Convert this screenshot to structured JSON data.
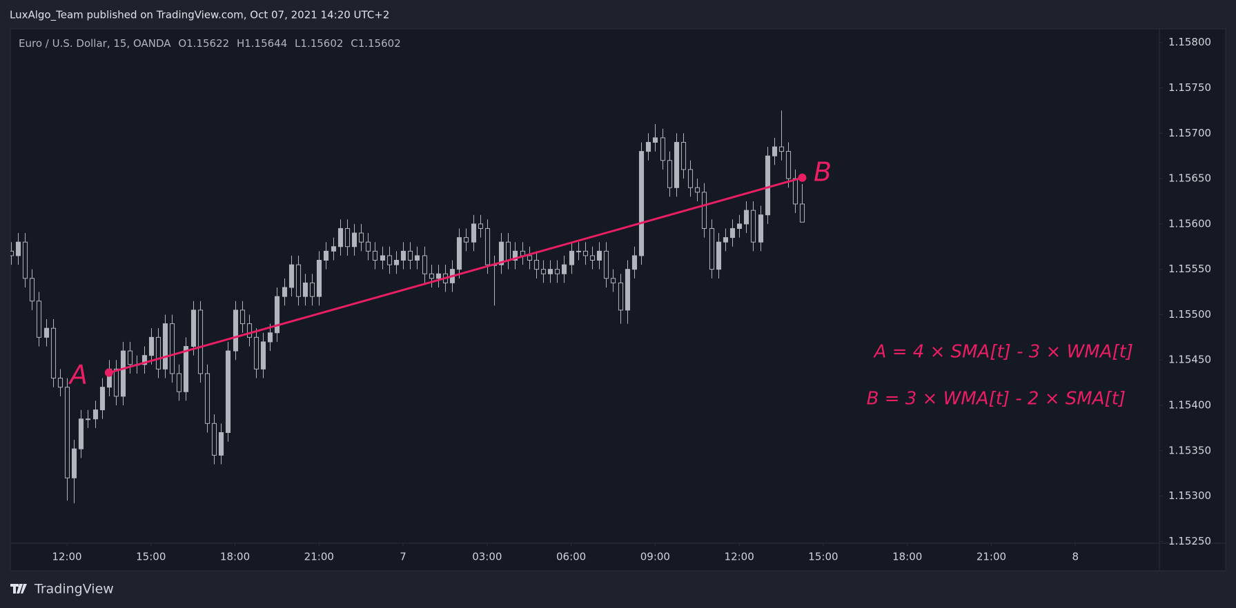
{
  "header": {
    "title": "LuxAlgo_Team published on TradingView.com, Oct 07, 2021 14:20 UTC+2"
  },
  "footer": {
    "brand": "TradingView"
  },
  "chart_data": {
    "type": "candlestick",
    "symbol": "Euro / U.S. Dollar, 15, OANDA",
    "ohlc_prefixes": [
      "O",
      "H",
      "L",
      "C"
    ],
    "color": "#b2b5be",
    "x": [
      10,
      10.25,
      10.5,
      10.75,
      11,
      11.25,
      11.5,
      11.75,
      12,
      12.25,
      12.5,
      12.75,
      13,
      13.25,
      13.5,
      13.75,
      14,
      14.25,
      14.5,
      14.75,
      15,
      15.25,
      15.5,
      15.75,
      16,
      16.25,
      16.5,
      16.75,
      17,
      17.25,
      17.5,
      17.75,
      18,
      18.25,
      18.5,
      18.75,
      19,
      19.25,
      19.5,
      19.75,
      20,
      20.25,
      20.5,
      20.75,
      21,
      21.25,
      21.5,
      21.75,
      22,
      22.25,
      22.5,
      22.75,
      23,
      23.25,
      23.5,
      23.75,
      24,
      24.25,
      24.5,
      24.75,
      25,
      25.25,
      25.5,
      25.75,
      26,
      26.25,
      26.5,
      26.75,
      27,
      27.25,
      27.5,
      27.75,
      28,
      28.25,
      28.5,
      28.75,
      29,
      29.25,
      29.5,
      29.75,
      30,
      30.25,
      30.5,
      30.75,
      31,
      31.25,
      31.5,
      31.75,
      32,
      32.25,
      32.5,
      32.75,
      33,
      33.25,
      33.5,
      33.75,
      34,
      34.25,
      34.5,
      34.75,
      35,
      35.25,
      35.5,
      35.75,
      36,
      36.25,
      36.5,
      36.75,
      37,
      37.25,
      37.5,
      37.75,
      38,
      38.25
    ],
    "open": [
      1.1557,
      1.15565,
      1.1558,
      1.1554,
      1.15515,
      1.15475,
      1.15485,
      1.1543,
      1.1542,
      1.1532,
      1.15352,
      1.15385,
      1.15385,
      1.15395,
      1.1542,
      1.1544,
      1.1541,
      1.1546,
      1.15445,
      1.15445,
      1.15455,
      1.15475,
      1.1544,
      1.1549,
      1.15435,
      1.15415,
      1.15465,
      1.15505,
      1.15435,
      1.1538,
      1.15345,
      1.1537,
      1.1546,
      1.15505,
      1.1549,
      1.15475,
      1.1544,
      1.1547,
      1.1548,
      1.1552,
      1.1553,
      1.15555,
      1.1552,
      1.15535,
      1.1552,
      1.1556,
      1.1557,
      1.15575,
      1.15595,
      1.15575,
      1.1559,
      1.1558,
      1.1557,
      1.1556,
      1.15565,
      1.15555,
      1.1556,
      1.1557,
      1.1556,
      1.15565,
      1.15545,
      1.1554,
      1.15545,
      1.15535,
      1.1555,
      1.15585,
      1.1558,
      1.156,
      1.15595,
      1.15555,
      1.15555,
      1.1558,
      1.1556,
      1.1557,
      1.15565,
      1.1556,
      1.1555,
      1.15545,
      1.1555,
      1.15545,
      1.15555,
      1.1557,
      1.1557,
      1.15565,
      1.1556,
      1.1557,
      1.1554,
      1.15535,
      1.15505,
      1.1555,
      1.15565,
      1.1568,
      1.1569,
      1.15695,
      1.1567,
      1.1564,
      1.1569,
      1.1566,
      1.1564,
      1.15635,
      1.15595,
      1.1555,
      1.1558,
      1.15585,
      1.15595,
      1.156,
      1.15615,
      1.1558,
      1.1561,
      1.15675,
      1.15685,
      1.1568,
      1.1565,
      1.15622
    ],
    "high": [
      1.1558,
      1.1559,
      1.1559,
      1.1555,
      1.15525,
      1.15495,
      1.15495,
      1.1544,
      1.1543,
      1.15362,
      1.15395,
      1.15395,
      1.15405,
      1.1543,
      1.1545,
      1.1545,
      1.1547,
      1.1547,
      1.15455,
      1.15465,
      1.15485,
      1.15485,
      1.155,
      1.155,
      1.15445,
      1.15475,
      1.15515,
      1.15515,
      1.15445,
      1.1539,
      1.1538,
      1.1547,
      1.15515,
      1.15515,
      1.155,
      1.15485,
      1.1548,
      1.1549,
      1.1553,
      1.1554,
      1.15565,
      1.15565,
      1.15545,
      1.15545,
      1.1557,
      1.1558,
      1.15585,
      1.15605,
      1.15605,
      1.156,
      1.156,
      1.1559,
      1.1558,
      1.15575,
      1.15575,
      1.1557,
      1.1558,
      1.1558,
      1.15575,
      1.15575,
      1.15555,
      1.15555,
      1.15555,
      1.1556,
      1.15595,
      1.15595,
      1.1561,
      1.1561,
      1.15605,
      1.15565,
      1.1559,
      1.1559,
      1.1558,
      1.1558,
      1.15575,
      1.1557,
      1.1556,
      1.1556,
      1.1556,
      1.15565,
      1.1558,
      1.1558,
      1.1558,
      1.15575,
      1.1558,
      1.1558,
      1.1555,
      1.15545,
      1.1556,
      1.15575,
      1.1569,
      1.157,
      1.1571,
      1.15705,
      1.1568,
      1.157,
      1.157,
      1.1567,
      1.1565,
      1.15645,
      1.15605,
      1.1559,
      1.15595,
      1.15605,
      1.1561,
      1.15625,
      1.15625,
      1.1562,
      1.15685,
      1.15695,
      1.15725,
      1.1569,
      1.1566,
      1.15644
    ],
    "low": [
      1.15555,
      1.15555,
      1.1553,
      1.15505,
      1.15465,
      1.15465,
      1.1542,
      1.1541,
      1.15295,
      1.15292,
      1.15342,
      1.15375,
      1.15375,
      1.15385,
      1.1541,
      1.154,
      1.154,
      1.15435,
      1.15435,
      1.15435,
      1.15445,
      1.1543,
      1.1543,
      1.15425,
      1.15405,
      1.15405,
      1.15455,
      1.15425,
      1.1537,
      1.15335,
      1.15335,
      1.1536,
      1.1545,
      1.1548,
      1.15465,
      1.1543,
      1.1543,
      1.1546,
      1.1547,
      1.1551,
      1.1552,
      1.1551,
      1.1551,
      1.1551,
      1.1551,
      1.1555,
      1.1556,
      1.15565,
      1.15565,
      1.15565,
      1.1557,
      1.1556,
      1.1555,
      1.1555,
      1.15545,
      1.15545,
      1.1555,
      1.1555,
      1.1555,
      1.15535,
      1.1553,
      1.1553,
      1.15525,
      1.15525,
      1.1554,
      1.1557,
      1.1557,
      1.15585,
      1.15545,
      1.1551,
      1.15545,
      1.1555,
      1.1555,
      1.15555,
      1.1555,
      1.1554,
      1.15535,
      1.15535,
      1.15535,
      1.15535,
      1.15545,
      1.1556,
      1.15555,
      1.1555,
      1.1555,
      1.1553,
      1.15525,
      1.1549,
      1.1549,
      1.1554,
      1.15555,
      1.1567,
      1.1568,
      1.1566,
      1.1563,
      1.1563,
      1.1565,
      1.1563,
      1.15625,
      1.15585,
      1.1554,
      1.1554,
      1.1557,
      1.15575,
      1.15585,
      1.1559,
      1.1557,
      1.1557,
      1.156,
      1.15665,
      1.1567,
      1.1564,
      1.15612,
      1.15602
    ],
    "close": [
      1.15565,
      1.1558,
      1.1554,
      1.15515,
      1.15475,
      1.15485,
      1.1543,
      1.1542,
      1.1532,
      1.15352,
      1.15385,
      1.15385,
      1.15395,
      1.1542,
      1.1544,
      1.1541,
      1.1546,
      1.15445,
      1.15445,
      1.15455,
      1.15475,
      1.1544,
      1.1549,
      1.15435,
      1.15415,
      1.15465,
      1.15505,
      1.15435,
      1.1538,
      1.15345,
      1.1537,
      1.1546,
      1.15505,
      1.1549,
      1.15475,
      1.1544,
      1.1547,
      1.1548,
      1.1552,
      1.1553,
      1.15555,
      1.1552,
      1.15535,
      1.1552,
      1.1556,
      1.1557,
      1.15575,
      1.15595,
      1.15575,
      1.1559,
      1.1558,
      1.1557,
      1.1556,
      1.15565,
      1.15555,
      1.1556,
      1.1557,
      1.1556,
      1.15565,
      1.15545,
      1.1554,
      1.15545,
      1.15535,
      1.1555,
      1.15585,
      1.1558,
      1.156,
      1.15595,
      1.15555,
      1.15555,
      1.1558,
      1.1556,
      1.1557,
      1.15565,
      1.1556,
      1.1555,
      1.15545,
      1.1555,
      1.15545,
      1.15555,
      1.1557,
      1.1557,
      1.15565,
      1.1556,
      1.1557,
      1.1554,
      1.15535,
      1.15505,
      1.1555,
      1.15565,
      1.1568,
      1.1569,
      1.15695,
      1.1567,
      1.1564,
      1.1569,
      1.1566,
      1.1564,
      1.15635,
      1.15595,
      1.1555,
      1.1558,
      1.15585,
      1.15595,
      1.156,
      1.15615,
      1.1558,
      1.1561,
      1.15675,
      1.15685,
      1.1568,
      1.1565,
      1.15622,
      1.15602
    ],
    "xlim": [
      9.98,
      51
    ],
    "xticks": [
      {
        "value": 12,
        "label": "12:00"
      },
      {
        "value": 15,
        "label": "15:00"
      },
      {
        "value": 18,
        "label": "18:00"
      },
      {
        "value": 21,
        "label": "21:00"
      },
      {
        "value": 24,
        "label": "7"
      },
      {
        "value": 27,
        "label": "03:00"
      },
      {
        "value": 30,
        "label": "06:00"
      },
      {
        "value": 33,
        "label": "09:00"
      },
      {
        "value": 36,
        "label": "12:00"
      },
      {
        "value": 39,
        "label": "15:00"
      },
      {
        "value": 42,
        "label": "18:00"
      },
      {
        "value": 45,
        "label": "21:00"
      },
      {
        "value": 48,
        "label": "8"
      }
    ],
    "ylim": [
      1.15248,
      1.15815
    ],
    "yticks": [
      {
        "value": 1.1525,
        "label": "1.15250"
      },
      {
        "value": 1.153,
        "label": "1.15300"
      },
      {
        "value": 1.1535,
        "label": "1.15350"
      },
      {
        "value": 1.154,
        "label": "1.15400"
      },
      {
        "value": 1.1545,
        "label": "1.15450"
      },
      {
        "value": 1.155,
        "label": "1.15500"
      },
      {
        "value": 1.1555,
        "label": "1.15550"
      },
      {
        "value": 1.156,
        "label": "1.15600"
      },
      {
        "value": 1.1565,
        "label": "1.15650"
      },
      {
        "value": 1.157,
        "label": "1.15700"
      },
      {
        "value": 1.1575,
        "label": "1.15750"
      },
      {
        "value": 1.158,
        "label": "1.15800"
      }
    ],
    "line": {
      "color": "#e91e63",
      "x": [
        13.5,
        38.25
      ],
      "y": [
        1.15436,
        1.15651
      ]
    },
    "annotations": [
      "A",
      "B",
      "A = 4 × SMA[t] - 3 × WMA[t]",
      "B = 3 × WMA[t] - 2 × SMA[t]"
    ]
  }
}
